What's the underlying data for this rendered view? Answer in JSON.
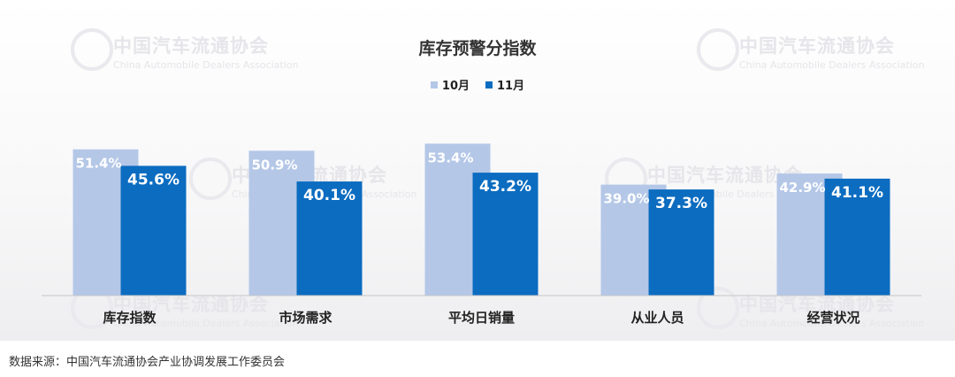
{
  "chart_data": {
    "type": "bar",
    "title": "库存预警分指数",
    "categories": [
      "库存指数",
      "市场需求",
      "平均日销量",
      "从业人员",
      "经营状况"
    ],
    "series": [
      {
        "name": "10月",
        "values": [
          51.4,
          50.9,
          53.4,
          39.0,
          42.9
        ],
        "labels": [
          "51.4%",
          "50.9%",
          "53.4%",
          "39.0%",
          "42.9%"
        ],
        "color": "#b4c7e7"
      },
      {
        "name": "11月",
        "values": [
          45.6,
          40.1,
          43.2,
          37.3,
          41.1
        ],
        "labels": [
          "45.6%",
          "40.1%",
          "43.2%",
          "37.3%",
          "41.1%"
        ],
        "color": "#0b6cc0"
      }
    ],
    "ylim": [
      0,
      60
    ],
    "legend_position": "top-center",
    "grid": false
  },
  "watermark": {
    "cn": "中国汽车流通协会",
    "en": "China Automobile Dealers Association",
    "logo": "CADA"
  },
  "source": "数据来源：中国汽车流通协会产业协调发展工作委员会"
}
